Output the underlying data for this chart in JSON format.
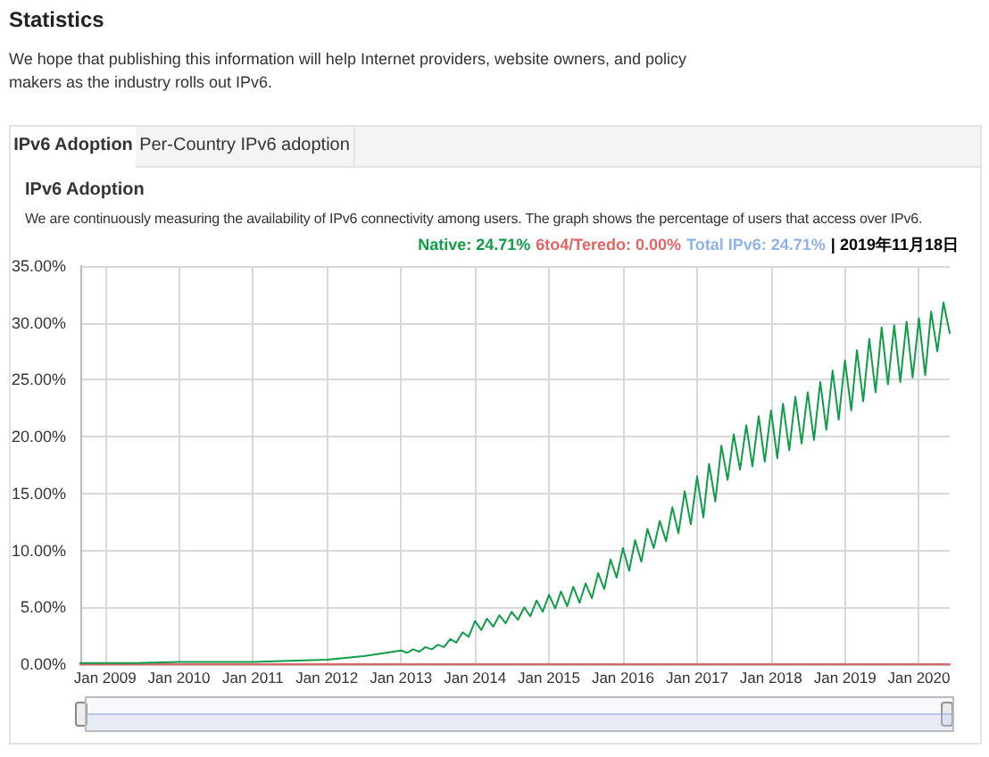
{
  "chart_data": {
    "type": "line",
    "title": "IPv6 Adoption",
    "subtitle": "We are continuously measuring the availability of IPv6 connectivity among users. The graph shows the percentage of users that access over IPv6.",
    "annotations": [
      "Statistics",
      "We hope that publishing this information will help Internet providers, website owners, and policy makers as the industry rolls out IPv6.",
      "IPv6 Adoption",
      "Per-Country IPv6 adoption",
      "Native: 24.71%",
      "6to4/Teredo: 0.00%",
      "Total IPv6: 24.71%",
      "| 2019年11月18日"
    ],
    "xlim": [
      "2008-09",
      "2020-06"
    ],
    "xticks": [
      {
        "value": "2009-01",
        "label": "Jan 2009"
      },
      {
        "value": "2010-01",
        "label": "Jan 2010"
      },
      {
        "value": "2011-01",
        "label": "Jan 2011"
      },
      {
        "value": "2012-01",
        "label": "Jan 2012"
      },
      {
        "value": "2013-01",
        "label": "Jan 2013"
      },
      {
        "value": "2014-01",
        "label": "Jan 2014"
      },
      {
        "value": "2015-01",
        "label": "Jan 2015"
      },
      {
        "value": "2016-01",
        "label": "Jan 2016"
      },
      {
        "value": "2017-01",
        "label": "Jan 2017"
      },
      {
        "value": "2018-01",
        "label": "Jan 2018"
      },
      {
        "value": "2019-01",
        "label": "Jan 2019"
      },
      {
        "value": "2020-01",
        "label": "Jan 2020"
      }
    ],
    "ylim": [
      0,
      35
    ],
    "yticks": [
      {
        "value": 0,
        "label": "0.00%"
      },
      {
        "value": 5,
        "label": "5.00%"
      },
      {
        "value": 10,
        "label": "10.00%"
      },
      {
        "value": 15,
        "label": "15.00%"
      },
      {
        "value": 20,
        "label": "20.00%"
      },
      {
        "value": 25,
        "label": "25.00%"
      },
      {
        "value": 30,
        "label": "30.00%"
      },
      {
        "value": 35,
        "label": "35.00%"
      }
    ],
    "grid": true,
    "marker": "none",
    "line_style": "solid",
    "series": [
      {
        "color": "#e06666",
        "x": [
          "2008-09",
          "2020-06"
        ],
        "values": [
          0,
          0
        ]
      },
      {
        "color": "#109d49",
        "x": [
          "2008-09",
          "2009-06",
          "2010-01",
          "2011-01",
          "2011-07",
          "2012-01",
          "2012-07",
          "2013-01",
          "2013-02",
          "2013-03",
          "2013-04",
          "2013-05",
          "2013-06",
          "2013-07",
          "2013-08",
          "2013-09",
          "2013-10",
          "2013-11",
          "2013-12",
          "2014-01",
          "2014-02",
          "2014-03",
          "2014-04",
          "2014-05",
          "2014-06",
          "2014-07",
          "2014-08",
          "2014-09",
          "2014-10",
          "2014-11",
          "2014-12",
          "2015-01",
          "2015-02",
          "2015-03",
          "2015-04",
          "2015-05",
          "2015-06",
          "2015-07",
          "2015-08",
          "2015-09",
          "2015-10",
          "2015-11",
          "2015-12",
          "2016-01",
          "2016-02",
          "2016-03",
          "2016-04",
          "2016-05",
          "2016-06",
          "2016-07",
          "2016-08",
          "2016-09",
          "2016-10",
          "2016-11",
          "2016-12",
          "2017-01",
          "2017-02",
          "2017-03",
          "2017-04",
          "2017-05",
          "2017-06",
          "2017-07",
          "2017-08",
          "2017-09",
          "2017-10",
          "2017-11",
          "2017-12",
          "2018-01",
          "2018-02",
          "2018-03",
          "2018-04",
          "2018-05",
          "2018-06",
          "2018-07",
          "2018-08",
          "2018-09",
          "2018-10",
          "2018-11",
          "2018-12",
          "2019-01",
          "2019-02",
          "2019-03",
          "2019-04",
          "2019-05",
          "2019-06",
          "2019-07",
          "2019-08",
          "2019-09",
          "2019-10",
          "2019-11",
          "2019-12",
          "2020-01",
          "2020-02",
          "2020-03",
          "2020-04",
          "2020-05",
          "2020-06"
        ],
        "values": [
          0.1,
          0.1,
          0.2,
          0.2,
          0.3,
          0.4,
          0.7,
          1.2,
          1.0,
          1.3,
          1.1,
          1.5,
          1.3,
          1.7,
          1.5,
          2.2,
          1.9,
          2.8,
          2.4,
          3.8,
          3.0,
          4.0,
          3.3,
          4.3,
          3.6,
          4.6,
          3.9,
          5.0,
          4.2,
          5.6,
          4.6,
          6.1,
          4.9,
          6.4,
          5.1,
          6.8,
          5.4,
          7.1,
          5.8,
          8.0,
          6.6,
          9.2,
          7.6,
          10.2,
          8.2,
          10.9,
          9.0,
          11.9,
          10.2,
          12.6,
          10.8,
          13.8,
          11.5,
          15.2,
          12.3,
          16.5,
          12.9,
          17.6,
          14.3,
          19.2,
          16.2,
          20.2,
          17.1,
          21.0,
          17.4,
          21.8,
          17.8,
          22.3,
          18.1,
          22.9,
          18.8,
          23.5,
          19.4,
          23.9,
          19.7,
          24.8,
          20.6,
          25.8,
          21.5,
          26.7,
          22.3,
          27.6,
          23.1,
          28.6,
          23.9,
          29.6,
          24.6,
          29.8,
          24.8,
          30.1,
          25.2,
          30.4,
          25.4,
          31.0,
          27.5,
          31.8,
          29.1
        ]
      }
    ]
  }
}
